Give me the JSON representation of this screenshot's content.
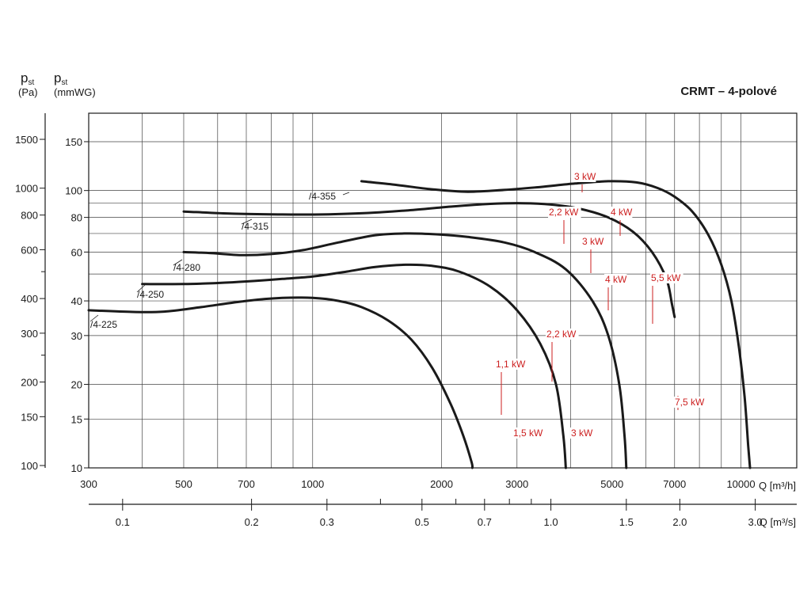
{
  "chart_data": {
    "type": "line",
    "title": "CRMT – 4-polové",
    "y_axis_left_pa": {
      "symbol": "p",
      "subscript": "st",
      "unit": "(Pa)",
      "ticks": [
        "1500",
        "1000",
        "800",
        "600",
        "400",
        "300",
        "200",
        "150",
        "100"
      ],
      "tick_values": [
        1500,
        1000,
        800,
        600,
        400,
        300,
        200,
        150,
        100
      ]
    },
    "y_axis_mmwg": {
      "symbol": "p",
      "subscript": "st",
      "unit": "(mmWG)",
      "ticks": [
        "150",
        "100",
        "80",
        "60",
        "40",
        "30",
        "20",
        "15",
        "10"
      ],
      "tick_values": [
        150,
        100,
        80,
        60,
        40,
        30,
        20,
        15,
        10
      ],
      "scale": "log",
      "range": [
        10,
        190
      ]
    },
    "x_axis_m3h": {
      "label": "Q [m³/h]",
      "ticks": [
        "300",
        "500",
        "700",
        "1000",
        "2000",
        "3000",
        "5000",
        "7000",
        "10000"
      ],
      "tick_values": [
        300,
        500,
        700,
        1000,
        2000,
        3000,
        5000,
        7000,
        10000
      ],
      "scale": "log",
      "range": [
        300,
        13500
      ]
    },
    "x_axis_m3s": {
      "label": "Q [m³/s]",
      "ticks": [
        "0.1",
        "0.2",
        "0.3",
        "0.5",
        "0.7",
        "1.0",
        "1.5",
        "2.0",
        "3.0"
      ],
      "tick_values": [
        0.1,
        0.2,
        0.3,
        0.5,
        0.7,
        1.0,
        1.5,
        2.0,
        3.0
      ]
    },
    "grid": true,
    "series": [
      {
        "name": "/4-225",
        "x": [
          300,
          380,
          450,
          550,
          700,
          850,
          1000,
          1150,
          1300,
          1500,
          1700,
          1900,
          2100,
          2250,
          2350,
          2360
        ],
        "y": [
          37,
          36.5,
          36.6,
          38,
          40,
          41,
          41,
          40,
          38,
          34,
          29,
          23,
          17,
          13,
          10.5,
          10
        ]
      },
      {
        "name": "/4-250",
        "x": [
          400,
          500,
          600,
          700,
          850,
          1000,
          1200,
          1400,
          1650,
          1900,
          2200,
          2600,
          3000,
          3400,
          3700,
          3850,
          3900
        ],
        "y": [
          46,
          46,
          46.4,
          47,
          48,
          49,
          51,
          53,
          54,
          53.5,
          51,
          45,
          37,
          28,
          20,
          13,
          10
        ]
      },
      {
        "name": "/4-280",
        "x": [
          500,
          580,
          680,
          800,
          950,
          1150,
          1400,
          1650,
          1950,
          2300,
          2800,
          3300,
          3900,
          4500,
          4900,
          5200,
          5350,
          5400
        ],
        "y": [
          60,
          59.5,
          58.5,
          59,
          61,
          65,
          69,
          70,
          69.5,
          68,
          65,
          60,
          52,
          40,
          30,
          20,
          13,
          10
        ]
      },
      {
        "name": "/4-315",
        "x": [
          500,
          650,
          850,
          1050,
          1350,
          1700,
          2100,
          2600,
          3100,
          3600,
          4200,
          4900,
          5600,
          6200,
          6700,
          6900,
          7000
        ],
        "y": [
          84,
          82.5,
          82,
          82,
          83,
          85,
          87.5,
          89.5,
          90,
          89,
          86,
          80,
          71,
          60,
          48,
          39,
          35
        ]
      },
      {
        "name": "/4-355",
        "x": [
          1300,
          1550,
          1900,
          2300,
          2800,
          3400,
          4100,
          4900,
          5700,
          6400,
          7000,
          7700,
          8400,
          9000,
          9500,
          9900,
          10200,
          10400,
          10500
        ],
        "y": [
          108,
          105,
          101,
          99,
          100.5,
          103,
          106,
          108,
          107,
          102,
          95,
          84,
          69,
          54,
          40,
          27,
          18,
          12,
          10
        ]
      }
    ],
    "annotations": {
      "curve_labels": [
        "/4-355",
        "/4-315",
        "/4-280",
        "/4-250",
        "/4-225"
      ],
      "motor_labels": [
        "3 kW",
        "2,2 kW",
        "4 kW",
        "3 kW",
        "4 kW",
        "5,5 kW",
        "2,2 kW",
        "1,1 kW",
        "7,5 kW",
        "1,5 kW",
        "3 kW"
      ]
    }
  }
}
